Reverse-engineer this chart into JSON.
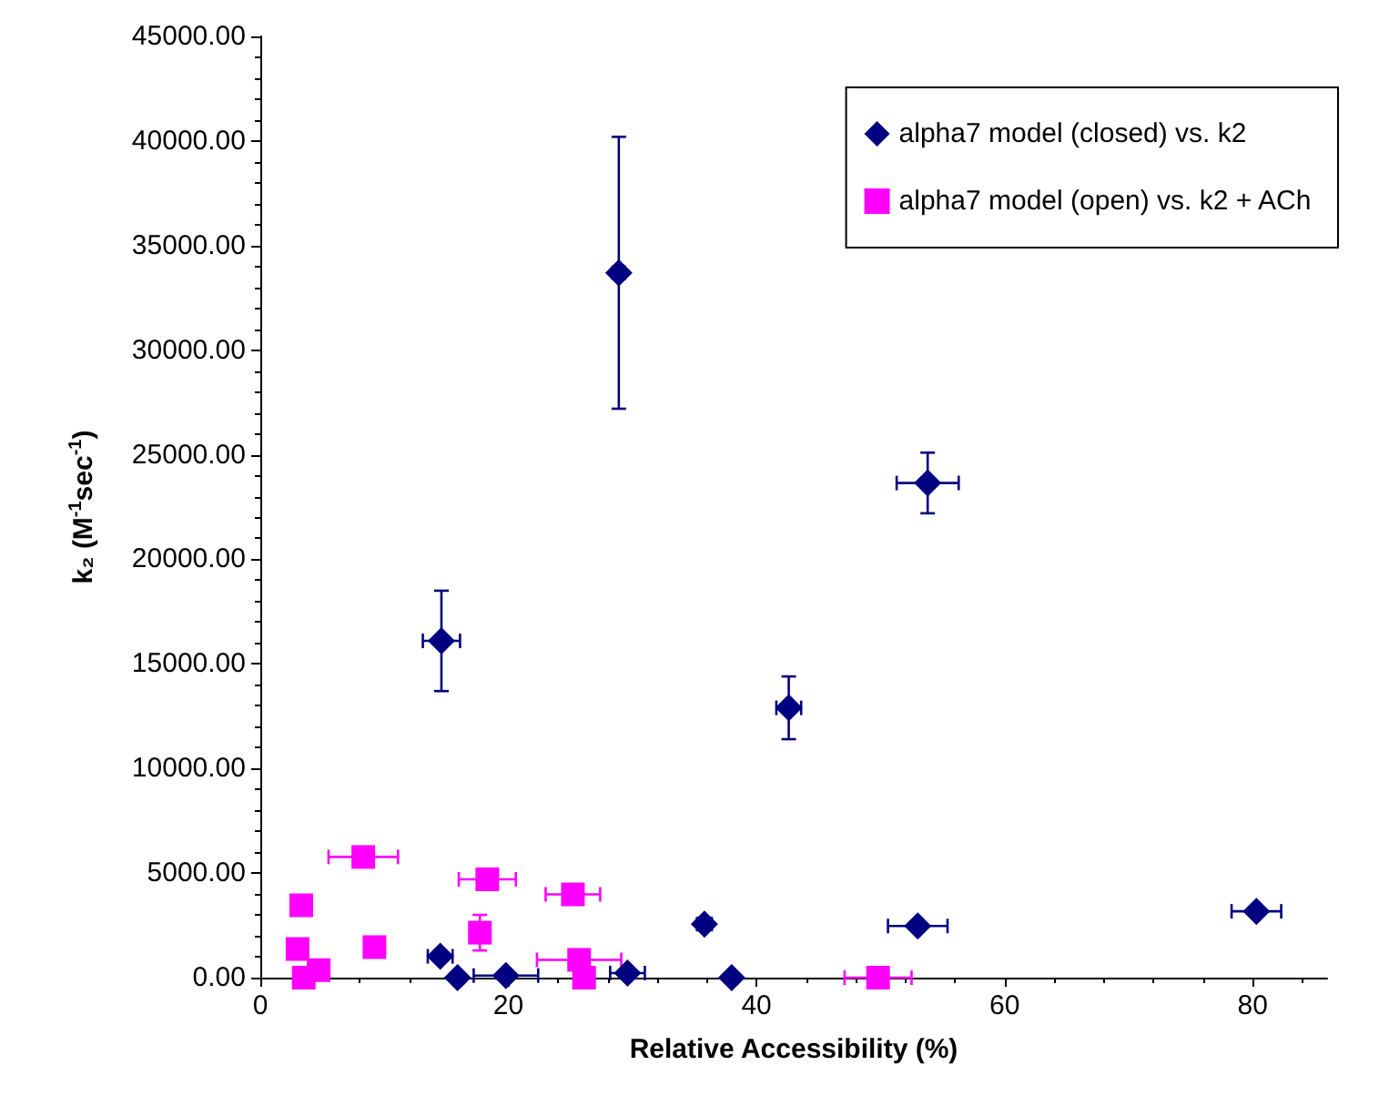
{
  "chart_data": {
    "type": "scatter",
    "xlabel": "Relative Accessibility (%)",
    "ylabel": "k₂ (M$^{-1}$sec$^{-1}$)",
    "xlim": [
      0,
      86
    ],
    "xticks": [
      0,
      20,
      40,
      60,
      80
    ],
    "ylim": [
      0,
      45000
    ],
    "yticks": [
      {
        "value": 0,
        "label": "0.00"
      },
      {
        "value": 5000,
        "label": "5000.00"
      },
      {
        "value": 10000,
        "label": "10000.00"
      },
      {
        "value": 15000,
        "label": "15000.00"
      },
      {
        "value": 20000,
        "label": "20000.00"
      },
      {
        "value": 25000,
        "label": "25000.00"
      },
      {
        "value": 30000,
        "label": "30000.00"
      },
      {
        "value": 35000,
        "label": "35000.00"
      },
      {
        "value": 40000,
        "label": "40000.00"
      },
      {
        "value": 45000,
        "label": "45000.00"
      }
    ],
    "grid": false,
    "legend": "top right",
    "series": [
      {
        "name": "alpha7 model (closed) vs. k2",
        "color": "#000080",
        "marker": "diamond",
        "x": [
          28.9,
          14.6,
          53.8,
          42.6,
          35.8,
          53.0,
          80.3,
          14.5,
          15.9,
          19.8,
          29.6,
          38.0
        ],
        "values": [
          33700,
          16100,
          23650,
          12900,
          2560,
          2470,
          3170,
          1020,
          0,
          100,
          220,
          0
        ],
        "errors": [
          6500,
          2400,
          1450,
          1500,
          null,
          null,
          null,
          null,
          null,
          null,
          null,
          null
        ],
        "xerrors": [
          0.5,
          1.5,
          2.5,
          1.0,
          0.6,
          2.4,
          2.0,
          1.0,
          null,
          2.6,
          1.4,
          null
        ]
      },
      {
        "name": "alpha7 model (open) vs. k2 + ACh",
        "color": "#ff00ff",
        "marker": "square",
        "x": [
          8.3,
          18.3,
          25.2,
          3.3,
          3.0,
          9.2,
          17.7,
          4.7,
          3.5,
          25.7,
          26.1,
          49.8
        ],
        "values": [
          5770,
          4700,
          3980,
          3460,
          1370,
          1460,
          2150,
          360,
          0,
          850,
          0,
          0
        ],
        "errors": [
          300,
          null,
          null,
          null,
          null,
          null,
          850,
          null,
          null,
          null,
          null,
          null
        ],
        "xerrors": [
          2.8,
          2.3,
          2.2,
          0.5,
          null,
          null,
          null,
          null,
          0.5,
          3.4,
          null,
          2.7
        ]
      }
    ]
  }
}
